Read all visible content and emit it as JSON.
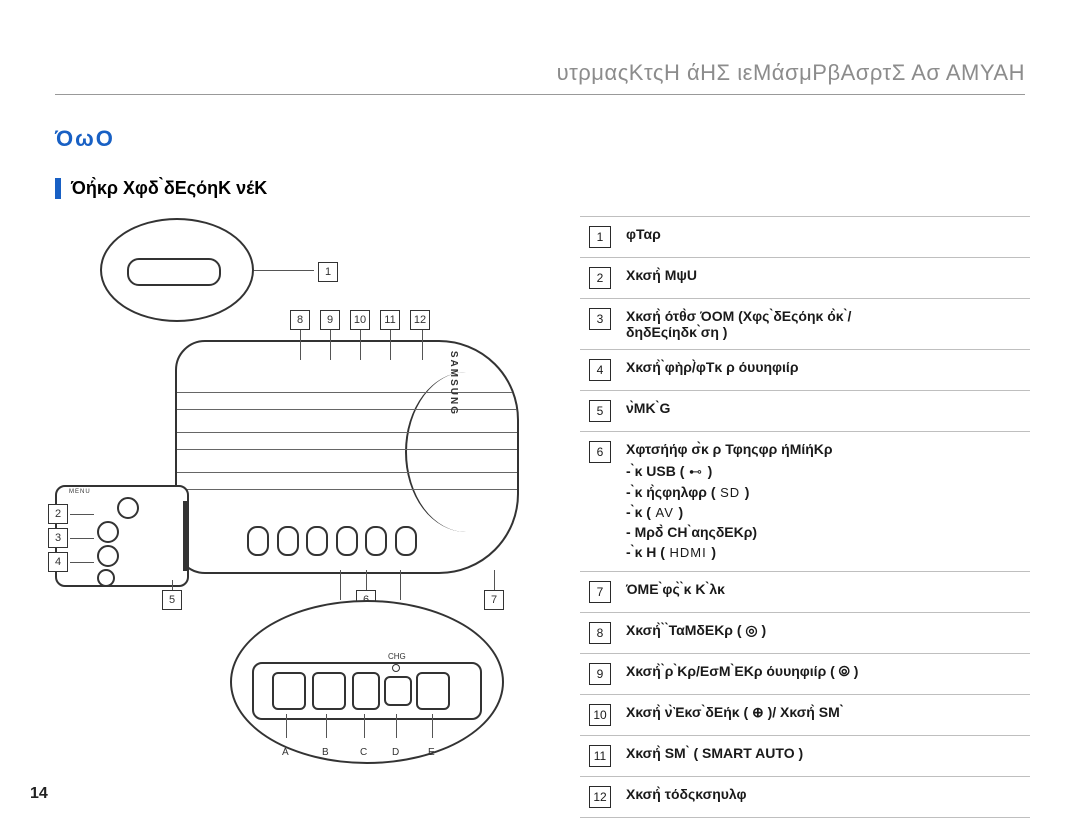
{
  "header": "υτρμαςΚτςΗ άΗΣ ιεΜάσμΡβΑσρτΣ Ασ ΑΜΥΑΗ",
  "section_title": "ΌωΟ",
  "subsection_title": "Όή̀κρ Χφδ ̀δΕςόηΚ νέΚ",
  "page_number": "14",
  "brand": "SAMSUNG",
  "chg_label": "CHG",
  "top_row_nums": [
    "8",
    "9",
    "10",
    "11",
    "12"
  ],
  "left_col_nums": [
    "2",
    "3",
    "4"
  ],
  "bottom_nums": [
    "5",
    "6",
    "7"
  ],
  "port_letters": [
    "A",
    "B",
    "C",
    "D",
    "E"
  ],
  "detail_num": "1",
  "callouts": [
    {
      "num": "1",
      "text": "φΤαρ"
    },
    {
      "num": "2",
      "text": "Χκσή̀ ΜψU"
    },
    {
      "num": "3",
      "text": "Χκσή̀ ότθ̀σ ΌΟΜ (Χφς ̀δΕςόηκ ό̀κ ̀/\nδηδΕςίηδκ ̀ση )"
    },
    {
      "num": "4",
      "text": "Χκσή̀ ̀φὴρ/̀φΤκ ρ όυυηφιίρ"
    },
    {
      "num": "5",
      "text": "ν̀ΜΚ ̀G"
    },
    {
      "num": "6",
      "text": "Χφτσήήφ σ̀κ ρ Τφηςφρ ήΜίήΚρ",
      "sub": [
        {
          "t": "  ̀κ  USB (",
          "suf": ")",
          "g": "⊷"
        },
        {
          "t": "  ̀κ ή̀ςφηλφρ (",
          "suf": ")",
          "g": "SD"
        },
        {
          "t": "  ̀κ  (",
          "suf": ")",
          "g": "AV"
        },
        {
          "t": "Μρδ̀  CH ̀αηςδΕΚρ)",
          "suf": "",
          "g": ""
        },
        {
          "t": "  ̀κ  Η (",
          "suf": ")",
          "g": "HDMI"
        }
      ]
    },
    {
      "num": "7",
      "text": "ΌΜΕ ̀φς̀ ̀κ Κ ̀λκ"
    },
    {
      "num": "8",
      "text": "Χκσή̀ ̀ ̀ΤαΜδΕΚρ ( ◎ )"
    },
    {
      "num": "9",
      "text": "Χκσή̀ ̀ρ ̀Κρ/ΕσΜ ̀ΕΚρ όυυηφιίρ (  ⦾ )"
    },
    {
      "num": "10",
      "text": "Χκσή̀  ν̀Ὲκσ  ̀δΕήκ (    ⊕ )/ Χκσή̀  SΜ ̀̀"
    },
    {
      "num": "11",
      "text": "Χκσή̀  SΜ ̀ (     SMART AUTO )"
    },
    {
      "num": "12",
      "text": "Χκσή̀  τόδςκσηυλφ "
    }
  ],
  "colors": {
    "accent": "#1860c4",
    "header_text": "#8c8c8c",
    "rule": "#bfbfbf",
    "ink": "#333333"
  }
}
